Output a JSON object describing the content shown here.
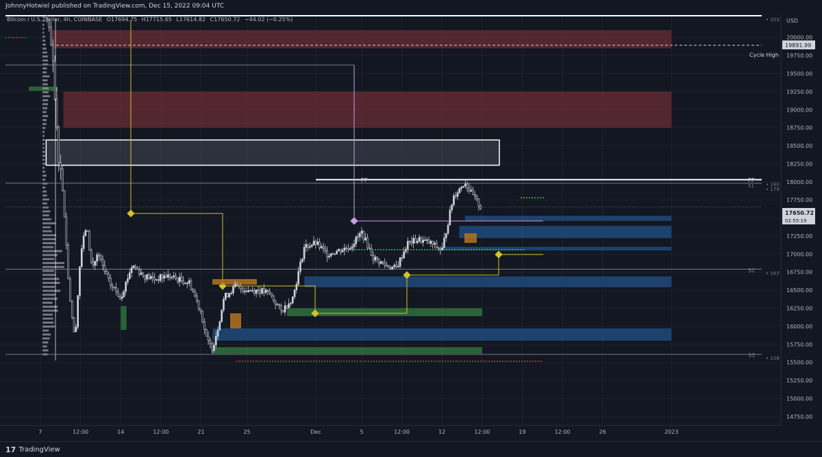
{
  "header": {
    "publisher": "JohnnyHotwiel published on TradingView.com, Dec 15, 2022 09:04 UTC"
  },
  "legend": {
    "symbol": "Bitcoin / U.S. Dollar, 4h, COINBASE",
    "open": "O17694.75",
    "high": "H17715.65",
    "low": "L17614.82",
    "close": "C17650.72",
    "change": "−44.02 (−0.25%)"
  },
  "footer": {
    "brand": "TradingView"
  },
  "price_scale": {
    "currency": "USD",
    "last_price": "17650.72",
    "countdown": "02:55:19",
    "cycle_high_value": "19891.99",
    "cycle_high_label": "Cycle High",
    "pp_top_tag": "• 203",
    "pp_mid_tag": "• 180",
    "s1_tag": "• 179",
    "s2_tag": "• 167",
    "s3_tag": "• 156"
  },
  "levels": {
    "pp": "PP",
    "s1": "S1",
    "s2": "S2",
    "s3": "S3"
  },
  "colors": {
    "background": "#131722",
    "grid": "#1e222d",
    "candle": "#d1d4dc",
    "supply_zone": "#6b2c35",
    "demand_zone": "#2e6b3a",
    "blue_zone": "#1e4a7a",
    "yellow_line": "#d4c02a",
    "purple_line": "#c8a0e0",
    "red_dotted": "#e0303a",
    "green_dotted": "#3acc4a",
    "orange_box": "#b5731e"
  },
  "chart_data": {
    "type": "candlestick",
    "symbol": "BTCUSD",
    "timeframe": "4h",
    "exchange": "COINBASE",
    "ylim": [
      14750,
      20300
    ],
    "y_ticks": [
      14750,
      15000,
      15250,
      15500,
      15750,
      16000,
      16250,
      16500,
      16750,
      17000,
      17250,
      17500,
      17750,
      18000,
      18250,
      18500,
      18750,
      19000,
      19250,
      19500,
      19750,
      20000
    ],
    "x_ticks": [
      {
        "label": "7",
        "date": "2022-11-07 00:00"
      },
      {
        "label": "12:00",
        "date": "2022-11-10 12:00"
      },
      {
        "label": "14",
        "date": "2022-11-14 00:00"
      },
      {
        "label": "12:00",
        "date": "2022-11-17 12:00"
      },
      {
        "label": "21",
        "date": "2022-11-21 00:00"
      },
      {
        "label": "25",
        "date": "2022-11-25 00:00"
      },
      {
        "label": "Dec",
        "date": "2022-12-01 00:00"
      },
      {
        "label": "5",
        "date": "2022-12-05 00:00"
      },
      {
        "label": "12:00",
        "date": "2022-12-08 12:00"
      },
      {
        "label": "12",
        "date": "2022-12-12 00:00"
      },
      {
        "label": "12:00",
        "date": "2022-12-15 12:00"
      },
      {
        "label": "19",
        "date": "2022-12-19 00:00"
      },
      {
        "label": "12:00",
        "date": "2022-12-22 12:00"
      },
      {
        "label": "26",
        "date": "2022-12-26 00:00"
      },
      {
        "label": "2023",
        "date": "2023-01-01 00:00"
      }
    ],
    "price_path": [
      {
        "date": "2022-11-07 12:00",
        "price": 20300
      },
      {
        "date": "2022-11-08 00:00",
        "price": 19800
      },
      {
        "date": "2022-11-08 12:00",
        "price": 18500
      },
      {
        "date": "2022-11-09 00:00",
        "price": 17800
      },
      {
        "date": "2022-11-09 12:00",
        "price": 16500
      },
      {
        "date": "2022-11-10 00:00",
        "price": 15800
      },
      {
        "date": "2022-11-10 12:00",
        "price": 17000
      },
      {
        "date": "2022-11-11 00:00",
        "price": 17400
      },
      {
        "date": "2022-11-11 12:00",
        "price": 16800
      },
      {
        "date": "2022-11-12 00:00",
        "price": 17000
      },
      {
        "date": "2022-11-13 00:00",
        "price": 16600
      },
      {
        "date": "2022-11-14 00:00",
        "price": 16400
      },
      {
        "date": "2022-11-15 00:00",
        "price": 16850
      },
      {
        "date": "2022-11-16 00:00",
        "price": 16700
      },
      {
        "date": "2022-11-17 00:00",
        "price": 16650
      },
      {
        "date": "2022-11-18 00:00",
        "price": 16700
      },
      {
        "date": "2022-11-19 00:00",
        "price": 16650
      },
      {
        "date": "2022-11-20 00:00",
        "price": 16600
      },
      {
        "date": "2022-11-21 00:00",
        "price": 16200
      },
      {
        "date": "2022-11-21 12:00",
        "price": 15800
      },
      {
        "date": "2022-11-22 00:00",
        "price": 15700
      },
      {
        "date": "2022-11-22 12:00",
        "price": 16000
      },
      {
        "date": "2022-11-23 00:00",
        "price": 16400
      },
      {
        "date": "2022-11-24 00:00",
        "price": 16550
      },
      {
        "date": "2022-11-25 00:00",
        "price": 16500
      },
      {
        "date": "2022-11-26 00:00",
        "price": 16500
      },
      {
        "date": "2022-11-27 00:00",
        "price": 16450
      },
      {
        "date": "2022-11-28 00:00",
        "price": 16200
      },
      {
        "date": "2022-11-29 00:00",
        "price": 16400
      },
      {
        "date": "2022-11-30 00:00",
        "price": 17100
      },
      {
        "date": "2022-12-01 00:00",
        "price": 17150
      },
      {
        "date": "2022-12-02 00:00",
        "price": 17000
      },
      {
        "date": "2022-12-03 00:00",
        "price": 17050
      },
      {
        "date": "2022-12-04 00:00",
        "price": 17100
      },
      {
        "date": "2022-12-05 00:00",
        "price": 17300
      },
      {
        "date": "2022-12-06 00:00",
        "price": 16950
      },
      {
        "date": "2022-12-07 00:00",
        "price": 16850
      },
      {
        "date": "2022-12-08 00:00",
        "price": 16800
      },
      {
        "date": "2022-12-09 00:00",
        "price": 17150
      },
      {
        "date": "2022-12-10 00:00",
        "price": 17200
      },
      {
        "date": "2022-12-11 00:00",
        "price": 17150
      },
      {
        "date": "2022-12-12 00:00",
        "price": 17050
      },
      {
        "date": "2022-12-13 00:00",
        "price": 17800
      },
      {
        "date": "2022-12-14 00:00",
        "price": 18000
      },
      {
        "date": "2022-12-14 12:00",
        "price": 17850
      },
      {
        "date": "2022-12-15 09:00",
        "price": 17650
      }
    ],
    "horizontal_levels": [
      {
        "label": "PP",
        "price": 20300
      },
      {
        "label": "PP",
        "price": 18030
      },
      {
        "label": "S1",
        "price": 17980
      },
      {
        "label": "S2",
        "price": 16790
      },
      {
        "label": "S3",
        "price": 15610
      }
    ],
    "cycle_high": 19891.99,
    "last_price": 17650.72,
    "zones": [
      {
        "kind": "supply",
        "from": "2022-11-08 00:00",
        "to": "2023-01-01 00:00",
        "low": 19850,
        "high": 20100
      },
      {
        "kind": "supply",
        "from": "2022-11-09 00:00",
        "to": "2023-01-01 00:00",
        "low": 18750,
        "high": 19250
      },
      {
        "kind": "neutral",
        "from": "2022-11-07 12:00",
        "to": "2022-12-17 00:00",
        "low": 18230,
        "high": 18580
      },
      {
        "kind": "demand",
        "from": "2022-11-06 00:00",
        "to": "2022-11-08 12:00",
        "low": 19260,
        "high": 19320
      },
      {
        "kind": "demand",
        "from": "2022-11-14 00:00",
        "to": "2022-11-14 12:00",
        "low": 15950,
        "high": 16280
      },
      {
        "kind": "demand",
        "from": "2022-11-28 12:00",
        "to": "2022-12-15 12:00",
        "low": 16140,
        "high": 16250
      },
      {
        "kind": "demand",
        "from": "2022-11-22 00:00",
        "to": "2022-12-15 12:00",
        "low": 15620,
        "high": 15710
      },
      {
        "kind": "blue",
        "from": "2022-12-14 00:00",
        "to": "2023-01-01 00:00",
        "low": 17460,
        "high": 17530
      },
      {
        "kind": "blue",
        "from": "2022-12-13 12:00",
        "to": "2023-01-01 00:00",
        "low": 17220,
        "high": 17390
      },
      {
        "kind": "blue",
        "from": "2022-12-12 00:00",
        "to": "2023-01-01 00:00",
        "low": 17050,
        "high": 17100
      },
      {
        "kind": "blue",
        "from": "2022-11-30 00:00",
        "to": "2023-01-01 00:00",
        "low": 16540,
        "high": 16690
      },
      {
        "kind": "blue",
        "from": "2022-11-22 00:00",
        "to": "2023-01-01 00:00",
        "low": 15800,
        "high": 15970
      }
    ]
  }
}
